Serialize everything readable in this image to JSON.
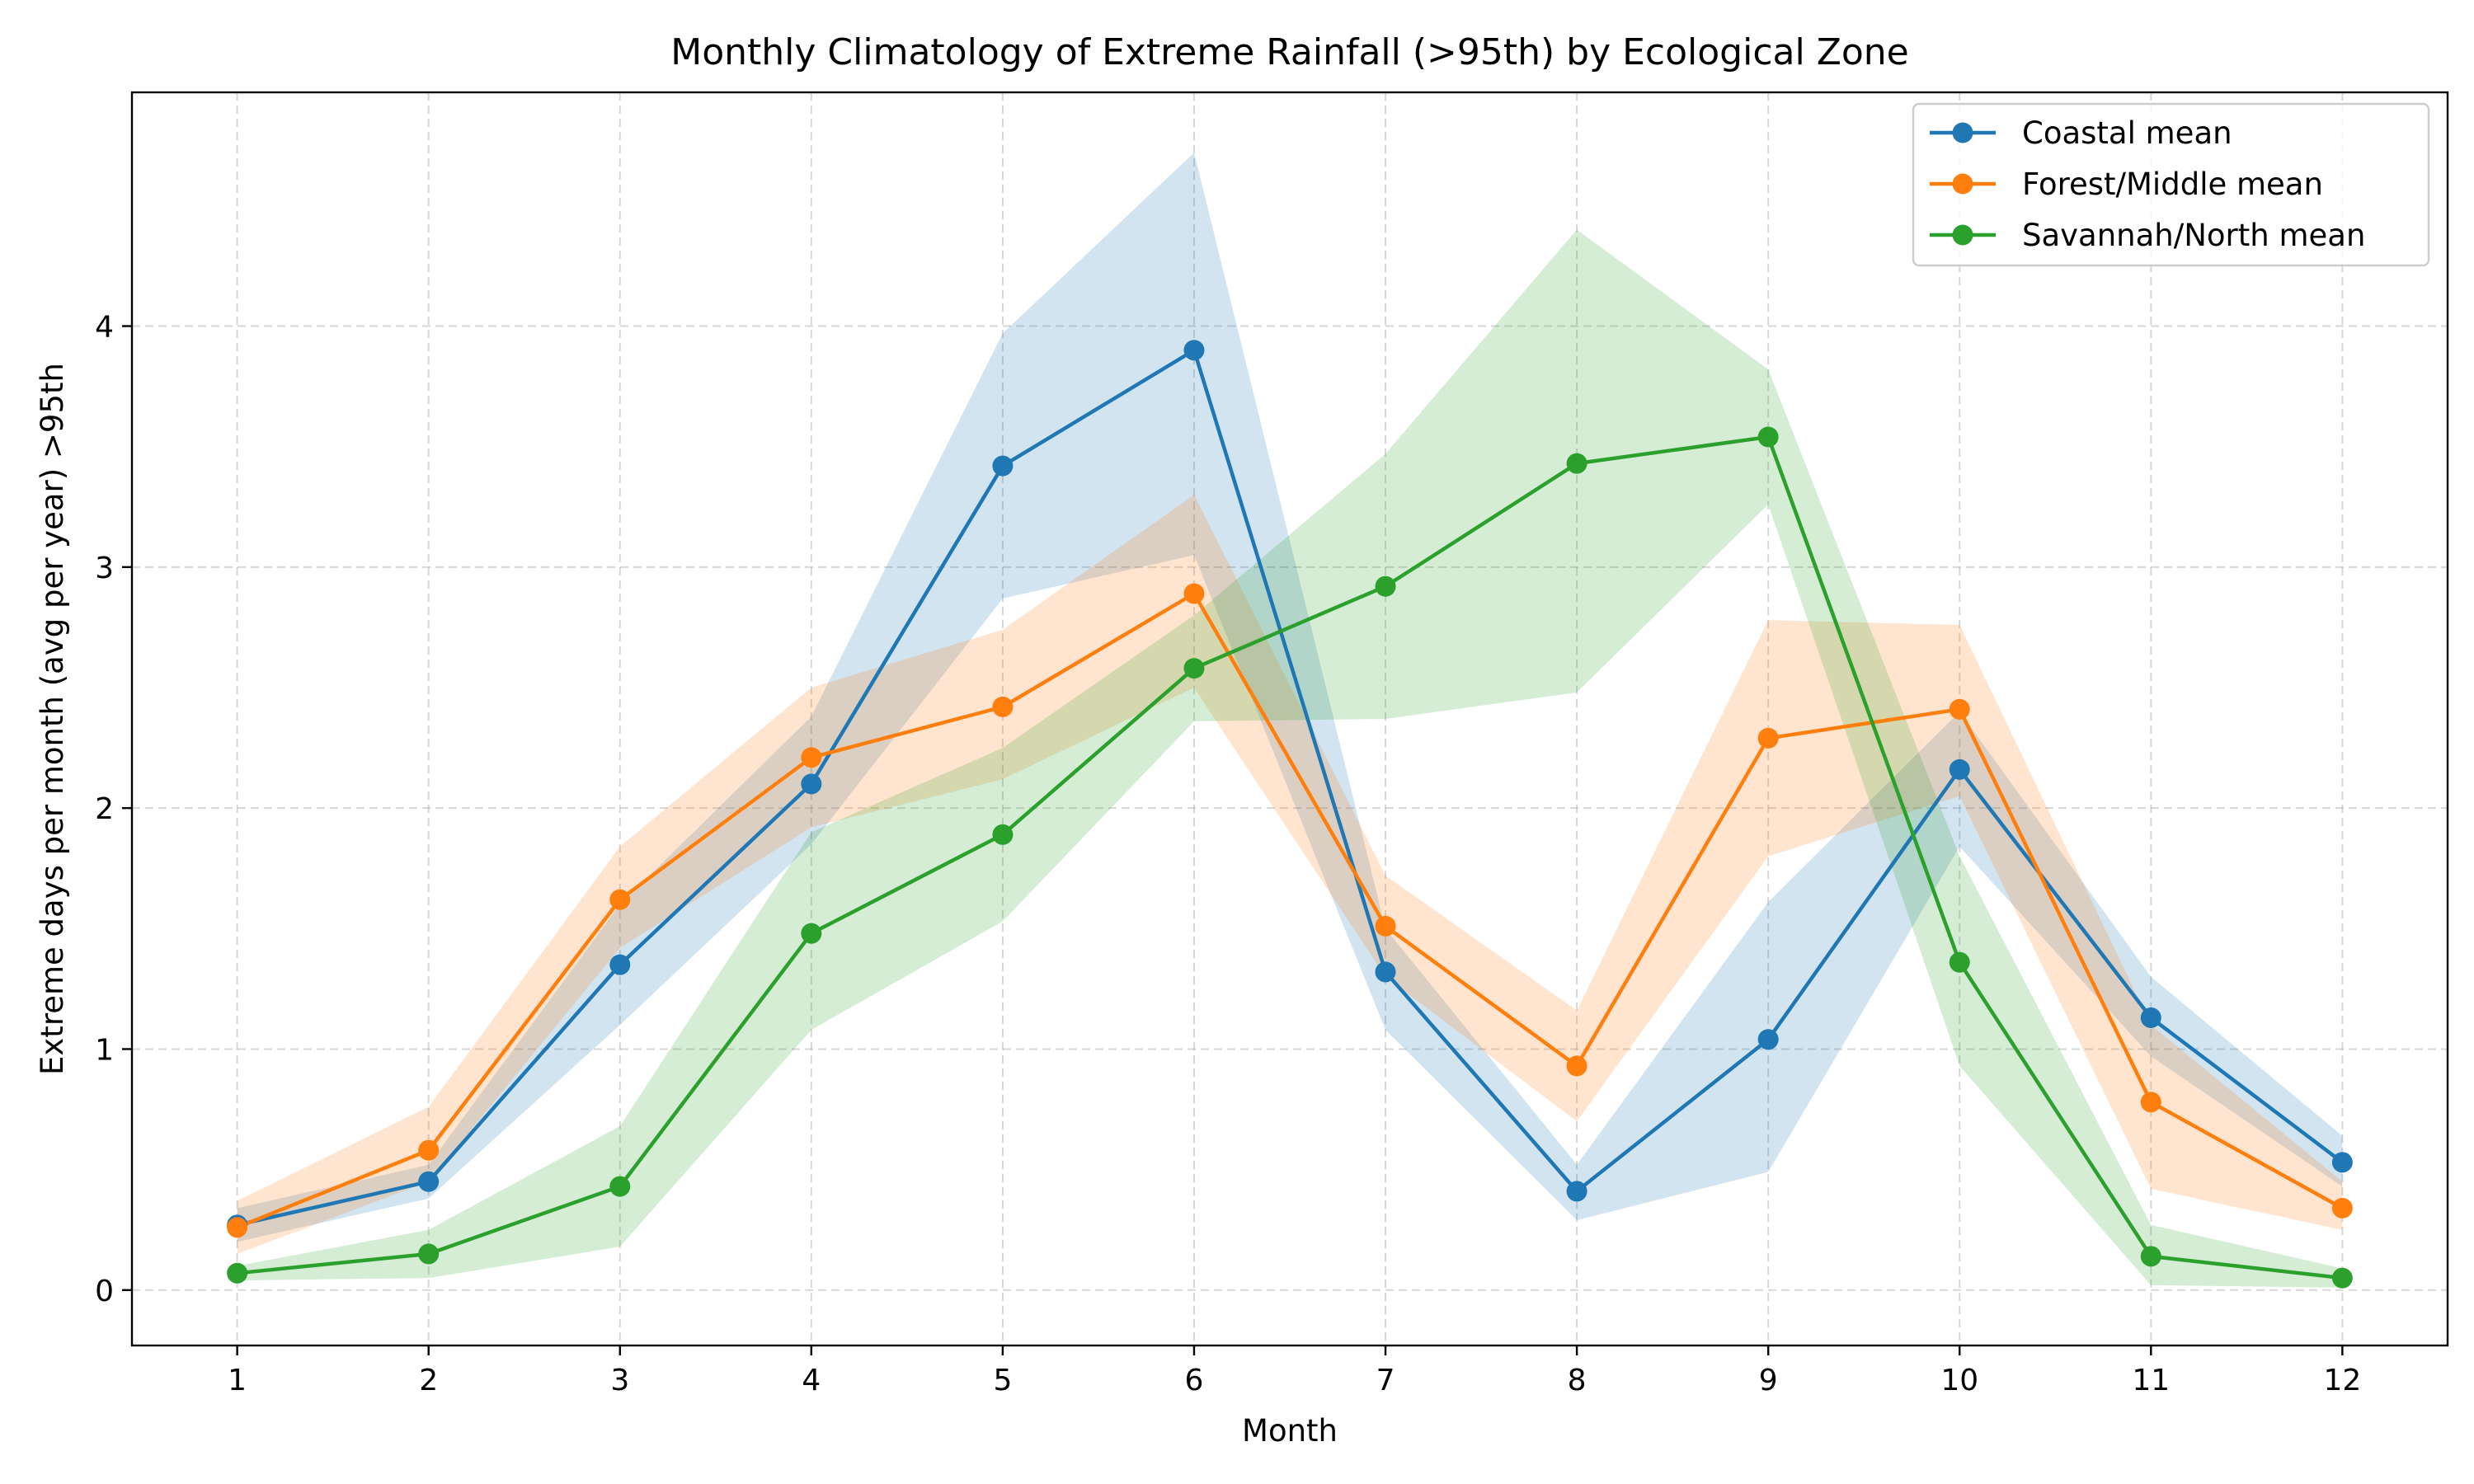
{
  "chart_data": {
    "type": "line",
    "title": "Monthly Climatology of Extreme Rainfall (>95th) by Ecological Zone",
    "xlabel": "Month",
    "ylabel": "Extreme days per month (avg per year) >95th",
    "x": [
      1,
      2,
      3,
      4,
      5,
      6,
      7,
      8,
      9,
      10,
      11,
      12
    ],
    "xlim": [
      0.45,
      12.55
    ],
    "ylim": [
      -0.23,
      4.97
    ],
    "xticks": [
      1,
      2,
      3,
      4,
      5,
      6,
      7,
      8,
      9,
      10,
      11,
      12
    ],
    "yticks": [
      0,
      1,
      2,
      3,
      4
    ],
    "grid": true,
    "legend_position": "top-right",
    "series": [
      {
        "name": "Coastal mean",
        "color": "#1f77b4",
        "values": [
          0.27,
          0.45,
          1.35,
          2.1,
          3.42,
          3.9,
          1.32,
          0.41,
          1.04,
          2.16,
          1.13,
          0.53
        ],
        "lower": [
          0.2,
          0.38,
          1.1,
          1.85,
          2.87,
          3.05,
          1.08,
          0.29,
          0.49,
          1.84,
          0.97,
          0.43
        ],
        "upper": [
          0.34,
          0.52,
          1.6,
          2.38,
          3.97,
          4.72,
          1.5,
          0.52,
          1.61,
          2.4,
          1.3,
          0.64
        ]
      },
      {
        "name": "Forest/Middle mean",
        "color": "#ff7f0e",
        "values": [
          0.26,
          0.58,
          1.62,
          2.21,
          2.42,
          2.89,
          1.51,
          0.93,
          2.29,
          2.41,
          0.78,
          0.34
        ],
        "lower": [
          0.15,
          0.45,
          1.42,
          1.92,
          2.12,
          2.5,
          1.3,
          0.7,
          1.8,
          2.05,
          0.42,
          0.25
        ],
        "upper": [
          0.37,
          0.76,
          1.84,
          2.5,
          2.74,
          3.3,
          1.72,
          1.16,
          2.78,
          2.76,
          1.1,
          0.45
        ]
      },
      {
        "name": "Savannah/North mean",
        "color": "#2ca02c",
        "values": [
          0.07,
          0.15,
          0.43,
          1.48,
          1.89,
          2.58,
          2.92,
          3.43,
          3.54,
          1.36,
          0.14,
          0.05
        ],
        "lower": [
          0.04,
          0.05,
          0.18,
          1.08,
          1.53,
          2.36,
          2.37,
          2.48,
          3.26,
          0.93,
          0.02,
          0.01
        ],
        "upper": [
          0.1,
          0.25,
          0.68,
          1.9,
          2.25,
          2.8,
          3.47,
          4.4,
          3.82,
          1.8,
          0.27,
          0.09
        ]
      }
    ]
  }
}
